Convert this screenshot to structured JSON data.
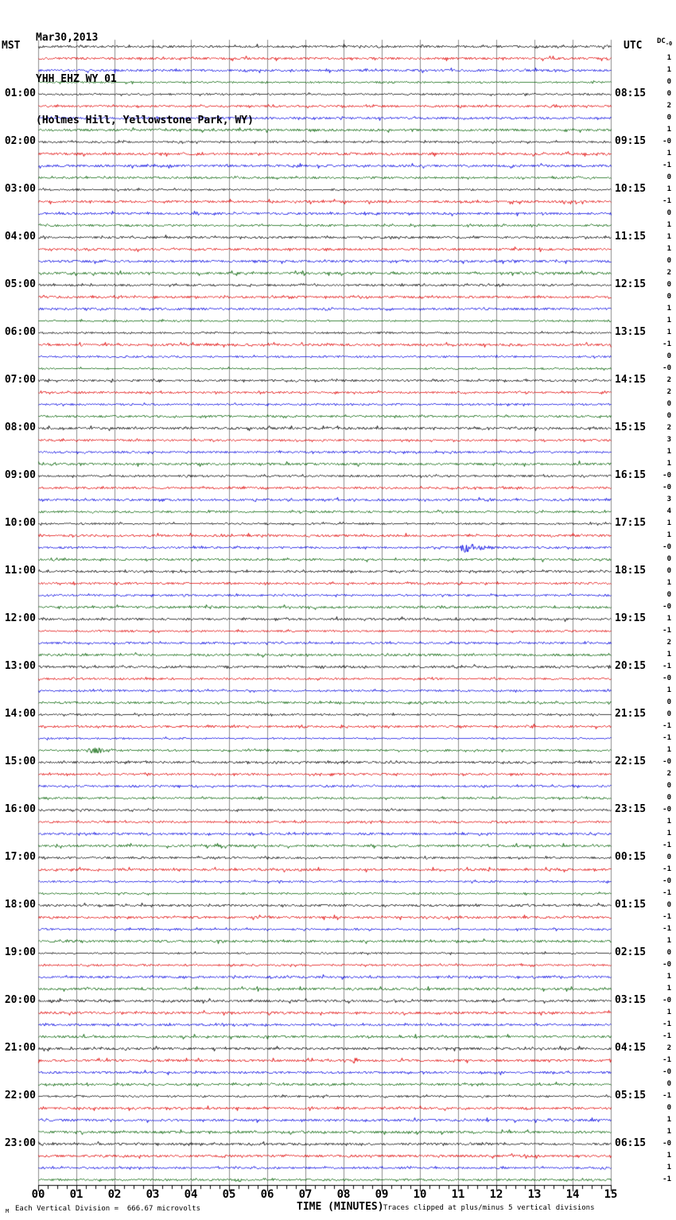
{
  "header": {
    "date": "Mar30,2013",
    "station": "YHH EHZ WY 01",
    "location": "(Holmes Hill, Yellowstone Park, WY)"
  },
  "axes": {
    "left_tz": "MST",
    "right_tz": "UTC",
    "x_label": "TIME (MINUTES)",
    "dc_header": "DC",
    "dc_header_sub": "-0"
  },
  "footer": {
    "left_mark": "M",
    "scale_note": "Each Vertical Division =  666.67 microvolts",
    "clip_note": "Traces clipped at plus/minus 5 vertical divisions"
  },
  "chart_data": {
    "type": "line",
    "subtype": "helicorder-seismogram",
    "title": "YHH EHZ WY 01 (Holmes Hill, Yellowstone Park, WY) Mar30,2013",
    "xlabel": "TIME (MINUTES)",
    "x_range": [
      0,
      15
    ],
    "x_ticks": [
      "00",
      "01",
      "02",
      "03",
      "04",
      "05",
      "06",
      "07",
      "08",
      "09",
      "10",
      "11",
      "12",
      "13",
      "14",
      "15"
    ],
    "minor_ticks_per_minute": 4,
    "row_count": 96,
    "rows_per_hour": 4,
    "minutes_per_row": 15,
    "start_time_mst": "00:00",
    "trace_color_cycle": [
      "#000000",
      "#e00000",
      "#0000e0",
      "#006000"
    ],
    "grid_color": "#8c8c8c",
    "left_labels": [
      "01:00",
      "02:00",
      "03:00",
      "04:00",
      "05:00",
      "06:00",
      "07:00",
      "08:00",
      "09:00",
      "10:00",
      "11:00",
      "12:00",
      "13:00",
      "14:00",
      "15:00",
      "16:00",
      "17:00",
      "18:00",
      "19:00",
      "20:00",
      "21:00",
      "22:00",
      "23:00"
    ],
    "right_labels": [
      "08:15",
      "09:15",
      "10:15",
      "11:15",
      "12:15",
      "13:15",
      "14:15",
      "15:15",
      "16:15",
      "17:15",
      "18:15",
      "19:15",
      "20:15",
      "21:15",
      "22:15",
      "23:15",
      "00:15",
      "01:15",
      "02:15",
      "03:15",
      "04:15",
      "05:15",
      "06:15"
    ],
    "dc_values": [
      "-0",
      "1",
      "1",
      "0",
      "0",
      "2",
      "0",
      "1",
      "-0",
      "1",
      "-1",
      "0",
      "1",
      "-1",
      "0",
      "1",
      "1",
      "1",
      "0",
      "2",
      "0",
      "0",
      "1",
      "1",
      "1",
      "-1",
      "0",
      "-0",
      "2",
      "2",
      "0",
      "0",
      "2",
      "3",
      "1",
      "1",
      "-0",
      "-0",
      "3",
      "4",
      "1",
      "1",
      "-0",
      "0",
      "0",
      "1",
      "0",
      "-0",
      "1",
      "-1",
      "2",
      "1",
      "-1",
      "-0",
      "1",
      "0",
      "0",
      "-1",
      "-1",
      "1",
      "-0",
      "2",
      "0",
      "0",
      "-0",
      "1",
      "1",
      "-1",
      "0",
      "-1",
      "-0",
      "-1",
      "0",
      "-1",
      "-1",
      "1",
      "0",
      "-0",
      "1",
      "1",
      "-0",
      "1",
      "-1",
      "-1",
      "2",
      "-1",
      "-0",
      "0",
      "-1",
      "0",
      "1",
      "1",
      "-0",
      "1",
      "1",
      "-1"
    ],
    "events": [
      {
        "row": 35,
        "row_time_mst": "08:45",
        "start_min": 14.15,
        "duration_min": 0.12,
        "amplitude": 5,
        "label": "spike"
      },
      {
        "row": 42,
        "row_time_mst": "10:30",
        "start_min": 11.0,
        "duration_min": 1.4,
        "amplitude": 6.5,
        "label": "small event"
      },
      {
        "row": 59,
        "row_time_mst": "14:45",
        "start_min": 1.25,
        "duration_min": 1.35,
        "amplitude": 4.5,
        "label": "small event"
      }
    ]
  }
}
